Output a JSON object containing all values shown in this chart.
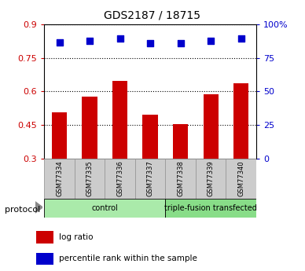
{
  "title": "GDS2187 / 18715",
  "samples": [
    "GSM77334",
    "GSM77335",
    "GSM77336",
    "GSM77337",
    "GSM77338",
    "GSM77339",
    "GSM77340"
  ],
  "log_ratio": [
    0.508,
    0.577,
    0.648,
    0.495,
    0.455,
    0.587,
    0.637
  ],
  "percentile_rank": [
    0.865,
    0.875,
    0.895,
    0.862,
    0.858,
    0.878,
    0.893
  ],
  "bar_color": "#cc0000",
  "dot_color": "#0000cc",
  "ylim_left": [
    0.3,
    0.9
  ],
  "ylim_right": [
    0.0,
    1.0
  ],
  "yticks_left": [
    0.3,
    0.45,
    0.6,
    0.75,
    0.9
  ],
  "ytick_labels_left": [
    "0.3",
    "0.45",
    "0.6",
    "0.75",
    "0.9"
  ],
  "yticks_right_vals": [
    0.0,
    0.25,
    0.5,
    0.75,
    1.0
  ],
  "ytick_labels_right": [
    "0",
    "25",
    "50",
    "75",
    "100%"
  ],
  "groups": [
    {
      "label": "control",
      "start": 0,
      "end": 4,
      "color": "#aaeaaa"
    },
    {
      "label": "triple-fusion transfected",
      "start": 4,
      "end": 7,
      "color": "#88dd88"
    }
  ],
  "protocol_label": "protocol",
  "legend_items": [
    {
      "label": "log ratio",
      "color": "#cc0000"
    },
    {
      "label": "percentile rank within the sample",
      "color": "#0000cc"
    }
  ],
  "bar_bottom": 0.3,
  "background_color": "#ffffff",
  "sample_box_color": "#cccccc",
  "sample_box_edge_color": "#999999",
  "title_fontsize": 10,
  "axis_fontsize": 8,
  "sample_fontsize": 6,
  "group_fontsize": 7,
  "legend_fontsize": 7.5,
  "bar_width": 0.5,
  "dot_size": 30
}
